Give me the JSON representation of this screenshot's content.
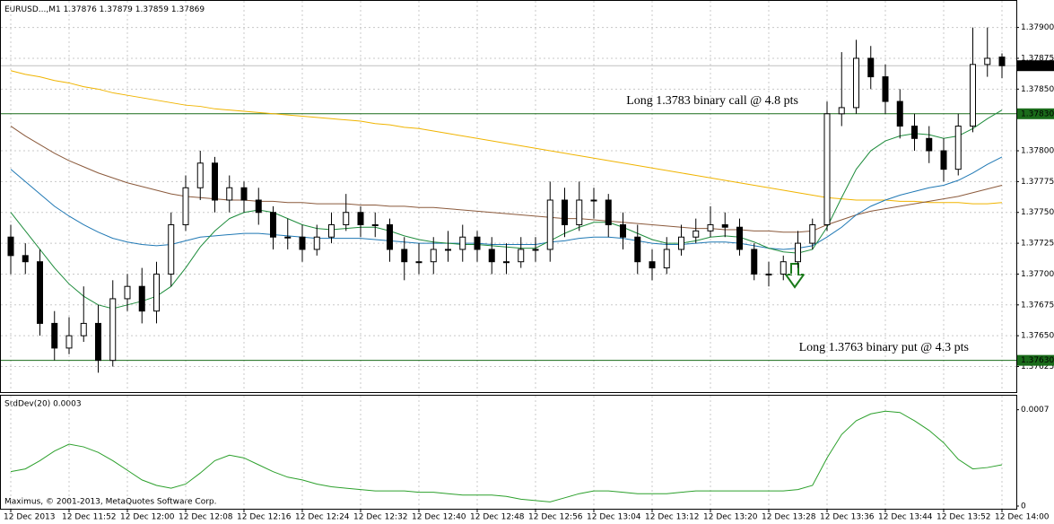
{
  "chart_data": [
    {
      "type": "candlestick",
      "title": "EURUSD...,M1",
      "categories": [
        "12 Dec 2013",
        null,
        null,
        null,
        "12 Dec 11:52",
        null,
        null,
        null,
        "12 Dec 12:00",
        null,
        null,
        null,
        "12 Dec 12:08",
        null,
        null,
        null,
        "12 Dec 12:16",
        null,
        null,
        null,
        "12 Dec 12:24",
        null,
        null,
        null,
        "12 Dec 12:32",
        null,
        null,
        null,
        "12 Dec 12:40",
        null,
        null,
        null,
        "12 Dec 12:48",
        null,
        null,
        null,
        "12 Dec 12:56",
        null,
        null,
        null,
        "12 Dec 13:04",
        null,
        null,
        null,
        "12 Dec 13:12",
        null,
        null,
        null,
        "12 Dec 13:20",
        null,
        null,
        null,
        "12 Dec 13:28",
        null,
        null,
        null,
        "12 Dec 13:36",
        null,
        null,
        null,
        "12 Dec 13:44",
        null,
        null,
        null,
        "12 Dec 13:52",
        null,
        null,
        null,
        "12 Dec 14:00"
      ],
      "open": [
        1.3773,
        1.37715,
        1.3771,
        1.3766,
        1.3764,
        1.3765,
        1.3766,
        1.3763,
        1.3768,
        1.3769,
        1.3767,
        1.377,
        1.3774,
        1.3777,
        1.3779,
        1.3776,
        1.3777,
        1.3776,
        1.3775,
        1.3773,
        1.3773,
        1.3772,
        1.3773,
        1.3774,
        1.3775,
        1.3774,
        1.3774,
        1.3772,
        1.3771,
        1.3771,
        1.3772,
        1.3772,
        1.3773,
        1.3772,
        1.3771,
        1.3771,
        1.3772,
        1.3772,
        1.3776,
        1.3774,
        1.3776,
        1.3776,
        1.3774,
        1.3773,
        1.3771,
        1.37705,
        1.3772,
        1.3773,
        1.37735,
        1.3774,
        1.37738,
        1.3772,
        1.377,
        1.377,
        1.3771,
        1.37725,
        1.3774,
        1.3783,
        1.37835,
        1.37875,
        1.3786,
        1.3784,
        1.3782,
        1.3781,
        1.378,
        1.37785,
        1.3782,
        1.3787,
        1.37876
      ],
      "high": [
        1.3774,
        1.37725,
        1.3772,
        1.3767,
        1.37665,
        1.3769,
        1.37675,
        1.37695,
        1.377,
        1.37705,
        1.3771,
        1.3775,
        1.3778,
        1.378,
        1.37795,
        1.3778,
        1.37775,
        1.3777,
        1.37755,
        1.37745,
        1.3774,
        1.3774,
        1.3775,
        1.37765,
        1.37755,
        1.3775,
        1.37745,
        1.3773,
        1.37725,
        1.3773,
        1.37735,
        1.3774,
        1.37735,
        1.3773,
        1.37725,
        1.3773,
        1.3773,
        1.37775,
        1.3777,
        1.37775,
        1.3777,
        1.37765,
        1.3775,
        1.3774,
        1.3772,
        1.3773,
        1.3774,
        1.37745,
        1.37755,
        1.3775,
        1.37745,
        1.37725,
        1.3771,
        1.37715,
        1.37735,
        1.37745,
        1.3784,
        1.3788,
        1.3789,
        1.37885,
        1.3787,
        1.3785,
        1.3783,
        1.3782,
        1.3781,
        1.3783,
        1.379,
        1.379,
        1.37879
      ],
      "low": [
        1.377,
        1.377,
        1.3765,
        1.3763,
        1.37635,
        1.37645,
        1.3762,
        1.37625,
        1.3767,
        1.3766,
        1.3766,
        1.3769,
        1.37735,
        1.3776,
        1.3775,
        1.3775,
        1.3775,
        1.3774,
        1.3772,
        1.3772,
        1.3771,
        1.37715,
        1.37725,
        1.37735,
        1.3773,
        1.3773,
        1.3771,
        1.37695,
        1.377,
        1.377,
        1.3771,
        1.3771,
        1.3771,
        1.377,
        1.377,
        1.37705,
        1.3771,
        1.3771,
        1.3773,
        1.37735,
        1.37745,
        1.3773,
        1.3772,
        1.377,
        1.37695,
        1.377,
        1.37715,
        1.37725,
        1.3773,
        1.3773,
        1.37715,
        1.37695,
        1.3769,
        1.37695,
        1.37705,
        1.3772,
        1.37735,
        1.3782,
        1.3783,
        1.3785,
        1.3783,
        1.3781,
        1.378,
        1.3779,
        1.37775,
        1.3778,
        1.37815,
        1.3786,
        1.37859
      ],
      "close": [
        1.37715,
        1.3771,
        1.3766,
        1.3764,
        1.3765,
        1.3766,
        1.3763,
        1.3768,
        1.3769,
        1.3767,
        1.377,
        1.3774,
        1.3777,
        1.3779,
        1.3776,
        1.3777,
        1.3776,
        1.3775,
        1.3773,
        1.3773,
        1.3772,
        1.3773,
        1.3774,
        1.3775,
        1.3774,
        1.3774,
        1.3772,
        1.3771,
        1.3771,
        1.3772,
        1.3772,
        1.3773,
        1.3772,
        1.3771,
        1.3771,
        1.3772,
        1.3772,
        1.3776,
        1.3774,
        1.3776,
        1.3776,
        1.3774,
        1.3773,
        1.3771,
        1.37705,
        1.3772,
        1.3773,
        1.37735,
        1.3774,
        1.37738,
        1.3772,
        1.377,
        1.377,
        1.3771,
        1.37725,
        1.3774,
        1.3783,
        1.37835,
        1.37875,
        1.3786,
        1.3784,
        1.3782,
        1.3781,
        1.378,
        1.37785,
        1.3782,
        1.3787,
        1.37875,
        1.37869
      ],
      "lines": [
        {
          "color": "#f0b400",
          "values": [
            1.37865,
            1.37862,
            1.3786,
            1.37857,
            1.37855,
            1.37852,
            1.3785,
            1.37847,
            1.37845,
            1.37843,
            1.37841,
            1.37839,
            1.37837,
            1.37836,
            1.37834,
            1.37833,
            1.37832,
            1.37831,
            1.3783,
            1.37829,
            1.37828,
            1.37827,
            1.37826,
            1.37825,
            1.37824,
            1.37822,
            1.37821,
            1.37819,
            1.37818,
            1.37816,
            1.37814,
            1.37812,
            1.3781,
            1.37808,
            1.37806,
            1.37804,
            1.37802,
            1.378,
            1.37798,
            1.37796,
            1.37794,
            1.37792,
            1.3779,
            1.37788,
            1.37786,
            1.37784,
            1.37782,
            1.3778,
            1.37778,
            1.37776,
            1.37774,
            1.37772,
            1.3777,
            1.37768,
            1.37766,
            1.37764,
            1.37762,
            1.37761,
            1.3776,
            1.3776,
            1.3776,
            1.37759,
            1.37759,
            1.37758,
            1.37758,
            1.37758,
            1.37757,
            1.37757,
            1.37758
          ]
        },
        {
          "color": "#8b5a3c",
          "values": [
            1.3782,
            1.37812,
            1.37805,
            1.37798,
            1.37792,
            1.37787,
            1.37782,
            1.37778,
            1.37774,
            1.37771,
            1.37768,
            1.37765,
            1.37763,
            1.37762,
            1.37761,
            1.3776,
            1.3776,
            1.37759,
            1.37759,
            1.37758,
            1.37758,
            1.37757,
            1.37757,
            1.37757,
            1.37756,
            1.37756,
            1.37755,
            1.37755,
            1.37754,
            1.37754,
            1.37753,
            1.37752,
            1.37751,
            1.3775,
            1.37749,
            1.37748,
            1.37747,
            1.37746,
            1.37745,
            1.37745,
            1.37744,
            1.37743,
            1.37742,
            1.37741,
            1.3774,
            1.37739,
            1.37738,
            1.37737,
            1.37737,
            1.37736,
            1.37736,
            1.37735,
            1.37735,
            1.37734,
            1.37734,
            1.37735,
            1.3774,
            1.37744,
            1.37748,
            1.37751,
            1.37753,
            1.37755,
            1.37757,
            1.37759,
            1.37761,
            1.37763,
            1.37766,
            1.37769,
            1.37772
          ]
        },
        {
          "color": "#1f78b4",
          "values": [
            1.37785,
            1.37775,
            1.37765,
            1.37755,
            1.37747,
            1.3774,
            1.37734,
            1.37729,
            1.37726,
            1.37724,
            1.37723,
            1.37724,
            1.37727,
            1.3773,
            1.37731,
            1.37732,
            1.37733,
            1.37733,
            1.37732,
            1.37731,
            1.3773,
            1.37729,
            1.37729,
            1.37729,
            1.37729,
            1.37728,
            1.37727,
            1.37726,
            1.37725,
            1.37725,
            1.37725,
            1.37725,
            1.37725,
            1.37724,
            1.37724,
            1.37724,
            1.37724,
            1.37726,
            1.37727,
            1.37729,
            1.3773,
            1.3773,
            1.37729,
            1.37727,
            1.37725,
            1.37724,
            1.37724,
            1.37725,
            1.37726,
            1.37726,
            1.37725,
            1.37723,
            1.37721,
            1.3772,
            1.37721,
            1.37723,
            1.3773,
            1.37738,
            1.37748,
            1.37755,
            1.3776,
            1.37764,
            1.37767,
            1.3777,
            1.37772,
            1.37776,
            1.37782,
            1.37789,
            1.37795
          ]
        },
        {
          "color": "#1e8c3c",
          "values": [
            1.3775,
            1.37735,
            1.3772,
            1.37705,
            1.37692,
            1.37682,
            1.37675,
            1.37672,
            1.37675,
            1.37678,
            1.37682,
            1.3769,
            1.37705,
            1.37722,
            1.37735,
            1.37745,
            1.3775,
            1.37752,
            1.3775,
            1.37745,
            1.3774,
            1.37737,
            1.37736,
            1.37737,
            1.37738,
            1.37738,
            1.37735,
            1.37731,
            1.37728,
            1.37726,
            1.37725,
            1.37724,
            1.37724,
            1.37723,
            1.37722,
            1.37721,
            1.37721,
            1.37727,
            1.37733,
            1.37738,
            1.37742,
            1.37742,
            1.37738,
            1.37733,
            1.37728,
            1.37725,
            1.37725,
            1.37727,
            1.3773,
            1.37731,
            1.3773,
            1.37726,
            1.37721,
            1.37718,
            1.37717,
            1.3772,
            1.37738,
            1.37762,
            1.37785,
            1.378,
            1.37808,
            1.37812,
            1.37814,
            1.37813,
            1.3781,
            1.37812,
            1.37818,
            1.37826,
            1.37833
          ]
        }
      ],
      "hlines": [
        {
          "value": 1.3783,
          "label": "1.37830",
          "text": "Long 1.3783 binary call @ 4.8 pts",
          "color": "#1a6b1a"
        },
        {
          "value": 1.3763,
          "label": "1.37630",
          "text": "Long 1.3763 binary put @ 4.3 pts",
          "color": "#1a6b1a"
        }
      ],
      "current_price": {
        "value": 1.37869,
        "label": "1.37869"
      },
      "ylim": [
        1.37605,
        1.37915
      ],
      "yticks": [
        {
          "value": 1.379,
          "label": "1.37900"
        },
        {
          "value": 1.37875,
          "label": "1.37875"
        },
        {
          "value": 1.3785,
          "label": "1.37850"
        },
        {
          "value": 1.378,
          "label": "1.37800"
        },
        {
          "value": 1.37775,
          "label": "1.37775"
        },
        {
          "value": 1.3775,
          "label": "1.37750"
        },
        {
          "value": 1.37725,
          "label": "1.37725"
        },
        {
          "value": 1.377,
          "label": "1.37700"
        },
        {
          "value": 1.37675,
          "label": "1.37675"
        },
        {
          "value": 1.3765,
          "label": "1.37650"
        },
        {
          "value": 1.37625,
          "label": "1.37625"
        }
      ],
      "grid": true
    },
    {
      "type": "line",
      "title": "StdDev(20) 0.0003",
      "color": "#2ca02c",
      "values": [
        0.00025,
        0.00027,
        0.00033,
        0.0004,
        0.00045,
        0.00043,
        0.00039,
        0.00033,
        0.00026,
        0.00019,
        0.00015,
        0.00013,
        0.00016,
        0.00024,
        0.00033,
        0.00037,
        0.00035,
        0.0003,
        0.00025,
        0.00021,
        0.00019,
        0.00016,
        0.00014,
        0.00013,
        0.00012,
        0.00011,
        0.00011,
        0.00011,
        0.0001,
        0.0001,
        9e-05,
        8e-05,
        8e-05,
        8e-05,
        7e-05,
        5e-05,
        4e-05,
        3e-05,
        6e-05,
        9e-05,
        0.00011,
        0.00011,
        0.0001,
        9e-05,
        9e-05,
        9e-05,
        0.0001,
        0.00011,
        0.00011,
        0.00011,
        0.00011,
        0.00011,
        0.00011,
        0.00011,
        0.00012,
        0.00015,
        0.00035,
        0.00052,
        0.00062,
        0.00067,
        0.00069,
        0.00068,
        0.00062,
        0.00055,
        0.00046,
        0.00034,
        0.00027,
        0.00028,
        0.0003
      ],
      "ylim": [
        0,
        0.00075
      ],
      "yticks": [
        0.0007,
        0
      ]
    }
  ],
  "footer": "Maximus, © 2001-2013, MetaQuotes Software Corp."
}
